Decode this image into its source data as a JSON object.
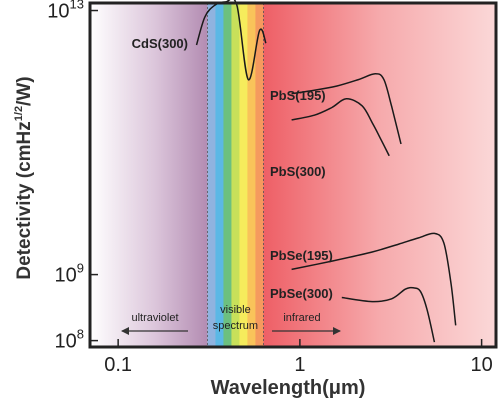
{
  "chart_data": {
    "type": "line",
    "xlabel": "Wavelength(μm)",
    "ylabel": "Detectivity (cmHz",
    "ylabel_sup": "1/2",
    "ylabel_end": "/W)",
    "x_scale": "log",
    "y_scale": "log",
    "xlim": [
      0.07,
      12
    ],
    "ylim": [
      80000000.0,
      13000000000000.0
    ],
    "x_ticks": [
      {
        "value": 0.1,
        "label": "0.1"
      },
      {
        "value": 1,
        "label": "1"
      },
      {
        "value": 10,
        "label": "10"
      }
    ],
    "y_ticks": [
      {
        "value": 100000000.0,
        "base": "10",
        "exp": "8"
      },
      {
        "value": 1000000000.0,
        "base": "10",
        "exp": "9"
      },
      {
        "value": 10000000000000.0,
        "base": "10",
        "exp": "13"
      }
    ],
    "regions": [
      {
        "label": "ultraviolet",
        "from": 0.07,
        "to": 0.31,
        "arrow": "left"
      },
      {
        "label_line1": "visible",
        "label_line2": "spectrum",
        "from": 0.31,
        "to": 0.63
      },
      {
        "label": "infrared",
        "from": 0.63,
        "to": 12,
        "arrow": "right"
      }
    ],
    "series": [
      {
        "name": "CdS(300)",
        "x": [
          0.27,
          0.3,
          0.34,
          0.39,
          0.45,
          0.52,
          0.6,
          0.65
        ],
        "y": [
          3000000000000.0,
          8000000000000.0,
          12000000000000.0,
          13500000000000.0,
          12000000000000.0,
          900000000000.0,
          5000000000000.0,
          3200000000000.0
        ]
      },
      {
        "name": "PbS(195)",
        "x": [
          0.9,
          1.2,
          1.6,
          2.1,
          2.6,
          2.9,
          3.2,
          3.6
        ],
        "y": [
          550000000000.0,
          620000000000.0,
          720000000000.0,
          900000000000.0,
          1100000000000.0,
          900000000000.0,
          350000000000.0,
          95000000000.0
        ]
      },
      {
        "name": "PbS(300)",
        "x": [
          0.9,
          1.2,
          1.5,
          1.8,
          2.2,
          2.5,
          2.8,
          3.1
        ],
        "y": [
          220000000000.0,
          260000000000.0,
          340000000000.0,
          460000000000.0,
          360000000000.0,
          200000000000.0,
          110000000000.0,
          63000000000.0
        ]
      },
      {
        "name": "PbSe(195)",
        "x": [
          0.9,
          1.5,
          2.5,
          3.5,
          4.5,
          5.5,
          6.2,
          6.8,
          7.2
        ],
        "y": [
          1200000000.0,
          1600000000.0,
          2200000000.0,
          2900000000.0,
          3600000000.0,
          4200000000.0,
          3000000000.0,
          700000000.0,
          170000000.0
        ]
      },
      {
        "name": "PbSe(300)",
        "x": [
          1.7,
          2.5,
          3.2,
          3.8,
          4.2,
          4.6,
          5.0,
          5.5
        ],
        "y": [
          450000000.0,
          390000000.0,
          430000000.0,
          600000000.0,
          630000000.0,
          560000000.0,
          300000000.0,
          95000000.0
        ]
      }
    ]
  }
}
